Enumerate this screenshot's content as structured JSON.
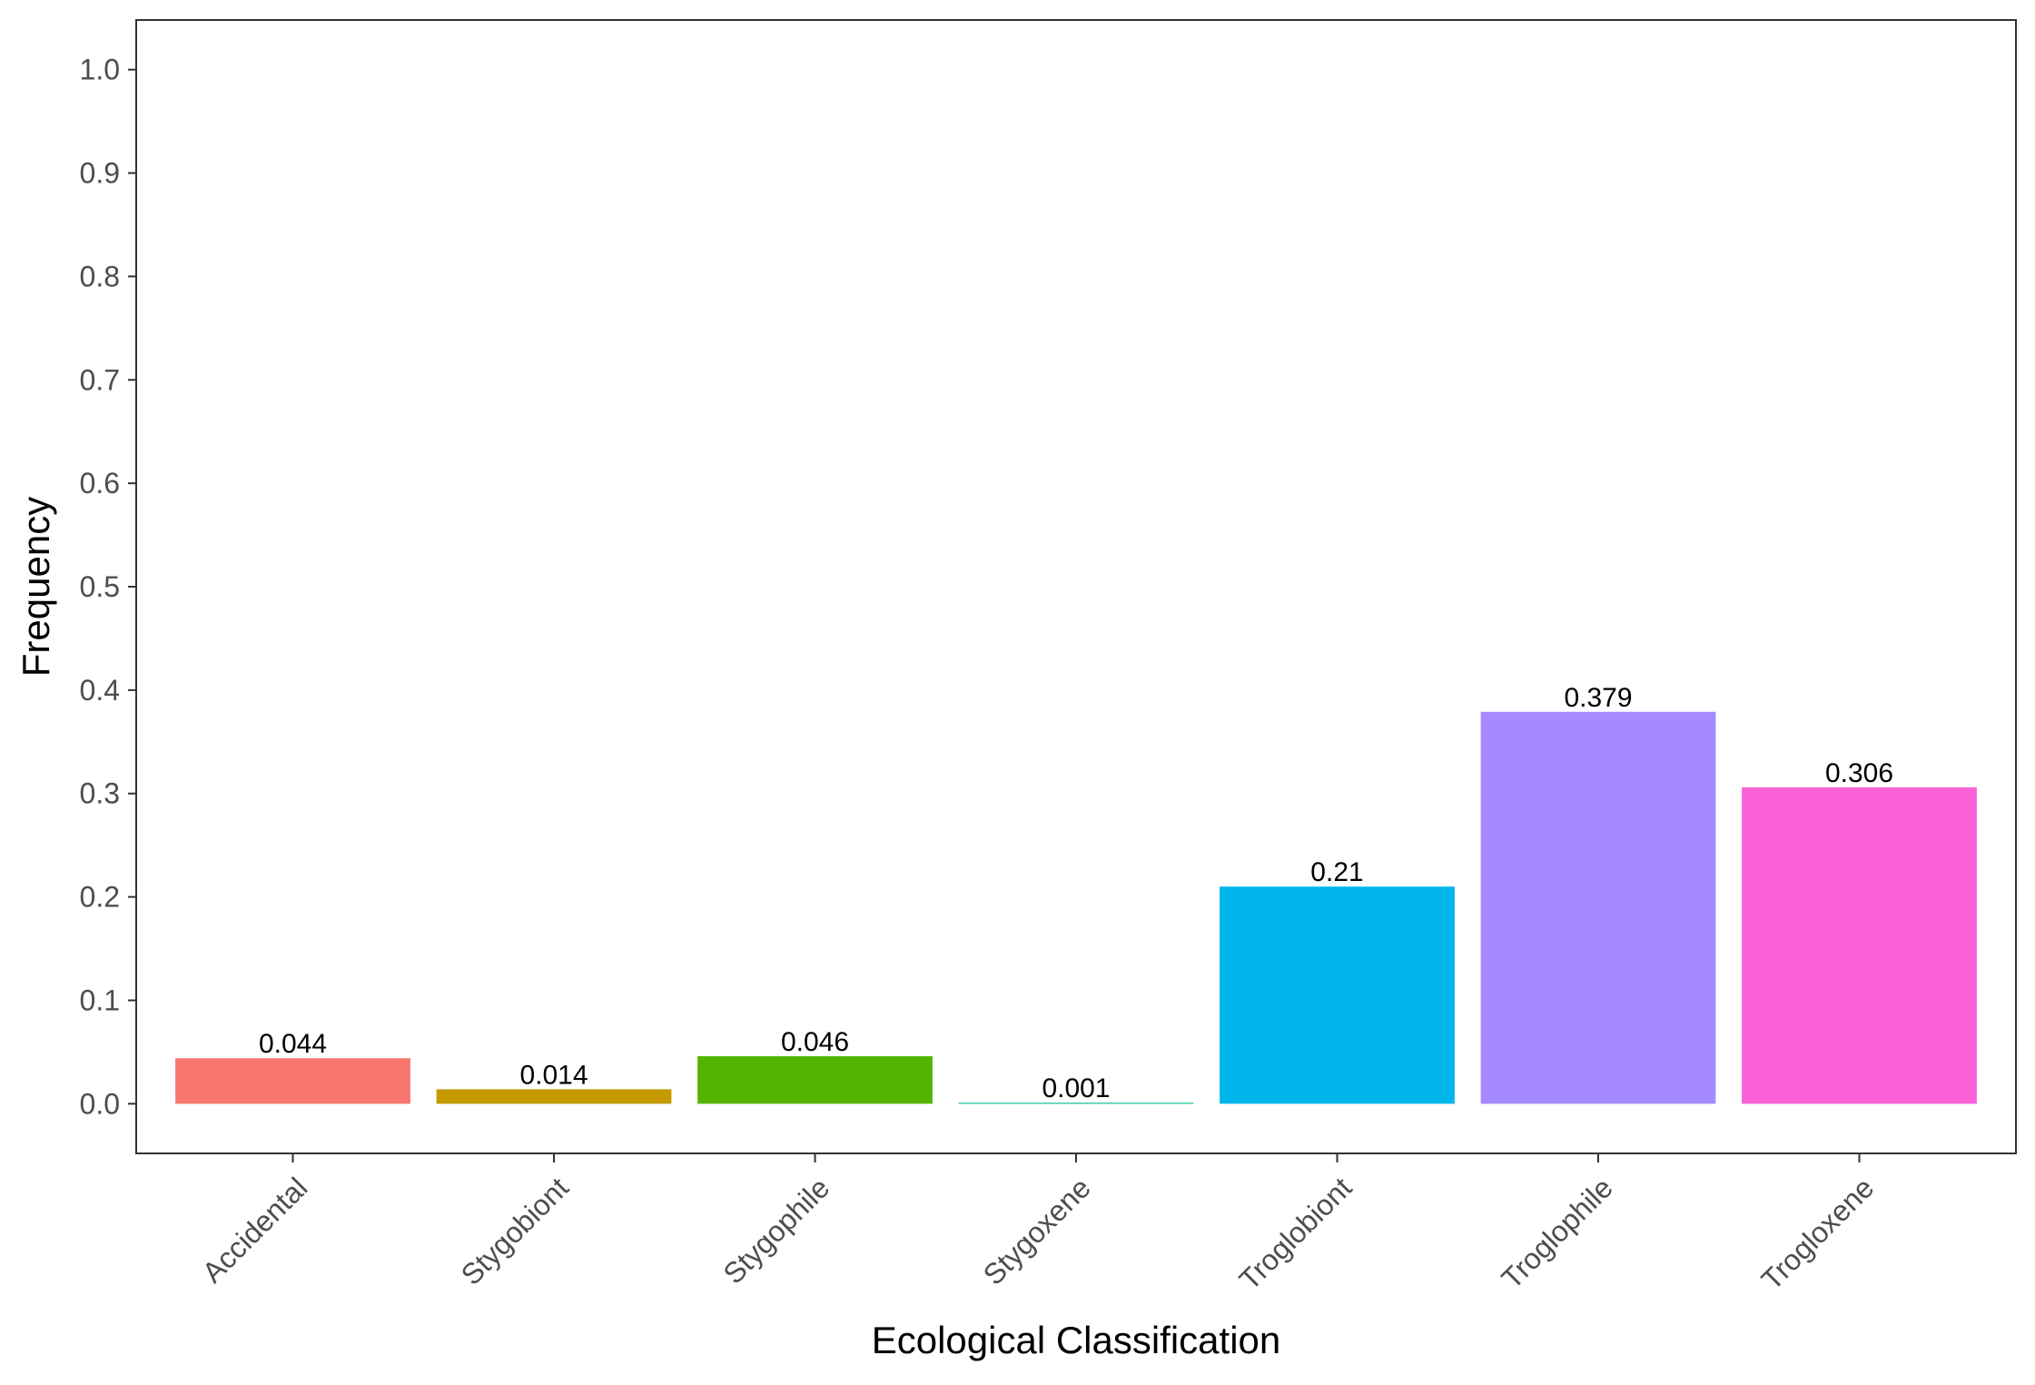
{
  "chart_data": {
    "type": "bar",
    "title": "",
    "xlabel": "Ecological Classification",
    "ylabel": "Frequency",
    "categories": [
      "Accidental",
      "Stygobiont",
      "Stygophile",
      "Stygoxene",
      "Troglobiont",
      "Troglophile",
      "Trogloxene"
    ],
    "values": [
      0.044,
      0.014,
      0.046,
      0.001,
      0.21,
      0.379,
      0.306
    ],
    "value_labels": [
      "0.044",
      "0.014",
      "0.046",
      "0.001",
      "0.21",
      "0.379",
      "0.306"
    ],
    "colors": [
      "#F8766D",
      "#C49A00",
      "#53B400",
      "#00C094",
      "#00B6EB",
      "#A58AFF",
      "#FB61D7"
    ],
    "ylim": [
      -0.048,
      1.048
    ],
    "yticks": [
      0.0,
      0.1,
      0.2,
      0.3,
      0.4,
      0.5,
      0.6,
      0.7,
      0.8,
      0.9,
      1.0
    ],
    "ytick_labels": [
      "0.0",
      "0.1",
      "0.2",
      "0.3",
      "0.4",
      "0.5",
      "0.6",
      "0.7",
      "0.8",
      "0.9",
      "1.0"
    ],
    "grid": false,
    "legend": "none"
  }
}
